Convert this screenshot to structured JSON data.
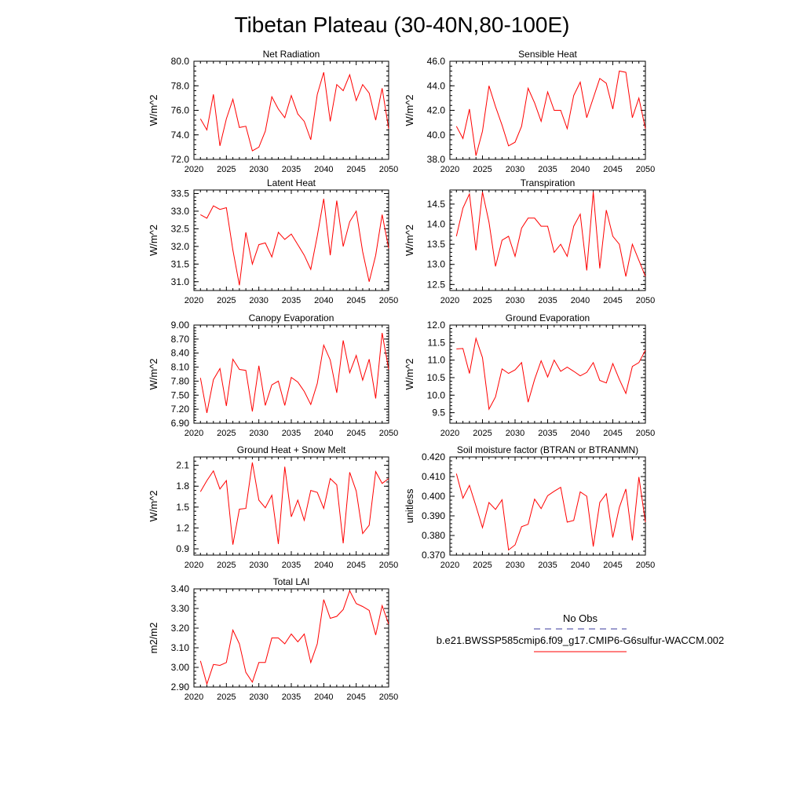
{
  "title": "Tibetan Plateau (30-40N,80-100E)",
  "legend": {
    "obs_label": "No Obs",
    "model_label": "b.e21.BWSSP585cmip6.f09_g17.CMIP6-G6sulfur-WACCM.002",
    "obs_color": "#3a3a9e",
    "model_color": "#ff0000"
  },
  "chart_data": [
    {
      "type": "line",
      "title": "Net Radiation",
      "ylabel": "W/m^2",
      "xlim": [
        2020,
        2050
      ],
      "ylim": [
        72.0,
        80.0
      ],
      "xticks": [
        "2020",
        "2025",
        "2030",
        "2035",
        "2040",
        "2045",
        "2050"
      ],
      "yticks": [
        "72.0",
        "74.0",
        "76.0",
        "78.0",
        "80.0"
      ],
      "series": [
        {
          "color": "#ff0000",
          "x": [
            2021,
            2022,
            2023,
            2024,
            2025,
            2026,
            2027,
            2028,
            2029,
            2030,
            2031,
            2032,
            2033,
            2034,
            2035,
            2036,
            2037,
            2038,
            2039,
            2040,
            2041,
            2042,
            2043,
            2044,
            2045,
            2046,
            2047,
            2048,
            2049,
            2050
          ],
          "y": [
            75.3,
            74.4,
            77.3,
            73.1,
            75.3,
            76.9,
            74.6,
            74.7,
            72.7,
            73.0,
            74.3,
            77.1,
            76.1,
            75.4,
            77.2,
            75.7,
            75.1,
            73.6,
            77.3,
            79.1,
            75.1,
            78.1,
            77.6,
            78.9,
            76.8,
            78.1,
            77.4,
            75.2,
            77.8,
            74.5
          ]
        }
      ]
    },
    {
      "type": "line",
      "title": "Sensible Heat",
      "ylabel": "W/m^2",
      "xlim": [
        2020,
        2050
      ],
      "ylim": [
        38.0,
        46.0
      ],
      "xticks": [
        "2020",
        "2025",
        "2030",
        "2035",
        "2040",
        "2045",
        "2050"
      ],
      "yticks": [
        "38.0",
        "40.0",
        "42.0",
        "44.0",
        "46.0"
      ],
      "series": [
        {
          "color": "#ff0000",
          "x": [
            2021,
            2022,
            2023,
            2024,
            2025,
            2026,
            2027,
            2028,
            2029,
            2030,
            2031,
            2032,
            2033,
            2034,
            2035,
            2036,
            2037,
            2038,
            2039,
            2040,
            2041,
            2042,
            2043,
            2044,
            2045,
            2046,
            2047,
            2048,
            2049,
            2050
          ],
          "y": [
            40.7,
            39.7,
            42.1,
            38.3,
            40.3,
            44.0,
            42.3,
            40.8,
            39.1,
            39.4,
            40.7,
            43.8,
            42.6,
            41.1,
            43.5,
            42.0,
            42.0,
            40.5,
            43.2,
            44.3,
            41.4,
            43.0,
            44.6,
            44.2,
            42.1,
            45.2,
            45.1,
            41.4,
            43.0,
            40.5
          ]
        }
      ]
    },
    {
      "type": "line",
      "title": "Latent Heat",
      "ylabel": "W/m^2",
      "xlim": [
        2020,
        2050
      ],
      "ylim": [
        30.75,
        33.6
      ],
      "xticks": [
        "2020",
        "2025",
        "2030",
        "2035",
        "2040",
        "2045",
        "2050"
      ],
      "yticks": [
        "31.0",
        "31.5",
        "32.0",
        "32.5",
        "33.0",
        "33.5"
      ],
      "series": [
        {
          "color": "#ff0000",
          "x": [
            2021,
            2022,
            2023,
            2024,
            2025,
            2026,
            2027,
            2028,
            2029,
            2030,
            2031,
            2032,
            2033,
            2034,
            2035,
            2036,
            2037,
            2038,
            2039,
            2040,
            2041,
            2042,
            2043,
            2044,
            2045,
            2046,
            2047,
            2048,
            2049,
            2050
          ],
          "y": [
            32.9,
            32.8,
            33.15,
            33.05,
            33.1,
            31.9,
            30.9,
            32.4,
            31.5,
            32.05,
            32.1,
            31.7,
            32.4,
            32.2,
            32.35,
            32.05,
            31.75,
            31.35,
            32.3,
            33.35,
            31.75,
            33.3,
            32.0,
            32.7,
            33.0,
            31.85,
            31.0,
            31.75,
            32.9,
            31.95
          ]
        }
      ]
    },
    {
      "type": "line",
      "title": "Transpiration",
      "ylabel": "W/m^2",
      "xlim": [
        2020,
        2050
      ],
      "ylim": [
        12.35,
        14.85
      ],
      "xticks": [
        "2020",
        "2025",
        "2030",
        "2035",
        "2040",
        "2045",
        "2050"
      ],
      "yticks": [
        "12.5",
        "13.0",
        "13.5",
        "14.0",
        "14.5"
      ],
      "series": [
        {
          "color": "#ff0000",
          "x": [
            2021,
            2022,
            2023,
            2024,
            2025,
            2026,
            2027,
            2028,
            2029,
            2030,
            2031,
            2032,
            2033,
            2034,
            2035,
            2036,
            2037,
            2038,
            2039,
            2040,
            2041,
            2042,
            2043,
            2044,
            2045,
            2046,
            2047,
            2048,
            2049,
            2050
          ],
          "y": [
            13.7,
            14.4,
            14.75,
            13.35,
            14.8,
            14.05,
            12.95,
            13.6,
            13.7,
            13.2,
            13.9,
            14.15,
            14.15,
            13.95,
            13.95,
            13.3,
            13.5,
            13.2,
            13.95,
            14.25,
            12.85,
            14.8,
            12.9,
            14.35,
            13.7,
            13.5,
            12.7,
            13.5,
            13.1,
            12.7
          ]
        }
      ]
    },
    {
      "type": "line",
      "title": "Canopy Evaporation",
      "ylabel": "W/m^2",
      "xlim": [
        2020,
        2050
      ],
      "ylim": [
        6.9,
        9.0
      ],
      "xticks": [
        "2020",
        "2025",
        "2030",
        "2035",
        "2040",
        "2045",
        "2050"
      ],
      "yticks": [
        "6.90",
        "7.20",
        "7.50",
        "7.80",
        "8.10",
        "8.40",
        "8.70",
        "9.00"
      ],
      "series": [
        {
          "color": "#ff0000",
          "x": [
            2021,
            2022,
            2023,
            2024,
            2025,
            2026,
            2027,
            2028,
            2029,
            2030,
            2031,
            2032,
            2033,
            2034,
            2035,
            2036,
            2037,
            2038,
            2039,
            2040,
            2041,
            2042,
            2043,
            2044,
            2045,
            2046,
            2047,
            2048,
            2049,
            2050
          ],
          "y": [
            7.87,
            7.12,
            7.83,
            8.07,
            7.27,
            8.27,
            8.05,
            8.03,
            7.15,
            8.13,
            7.28,
            7.72,
            7.8,
            7.28,
            7.88,
            7.78,
            7.58,
            7.3,
            7.75,
            8.57,
            8.25,
            7.55,
            8.67,
            7.98,
            8.35,
            7.82,
            8.27,
            7.43,
            8.83,
            8.05
          ]
        }
      ]
    },
    {
      "type": "line",
      "title": "Ground Evaporation",
      "ylabel": "W/m^2",
      "xlim": [
        2020,
        2050
      ],
      "ylim": [
        9.2,
        12.0
      ],
      "xticks": [
        "2020",
        "2025",
        "2030",
        "2035",
        "2040",
        "2045",
        "2050"
      ],
      "yticks": [
        "9.5",
        "10.0",
        "10.5",
        "11.0",
        "11.5",
        "12.0"
      ],
      "series": [
        {
          "color": "#ff0000",
          "x": [
            2021,
            2022,
            2023,
            2024,
            2025,
            2026,
            2027,
            2028,
            2029,
            2030,
            2031,
            2032,
            2033,
            2034,
            2035,
            2036,
            2037,
            2038,
            2039,
            2040,
            2041,
            2042,
            2043,
            2044,
            2045,
            2046,
            2047,
            2048,
            2049,
            2050
          ],
          "y": [
            11.32,
            11.33,
            10.62,
            11.62,
            11.07,
            9.6,
            9.95,
            10.75,
            10.62,
            10.72,
            10.93,
            9.8,
            10.45,
            10.98,
            10.52,
            11.0,
            10.68,
            10.8,
            10.68,
            10.55,
            10.65,
            10.93,
            10.42,
            10.35,
            10.9,
            10.45,
            10.05,
            10.82,
            10.93,
            11.28
          ]
        }
      ]
    },
    {
      "type": "line",
      "title": "Ground Heat + Snow Melt",
      "ylabel": "W/m^2",
      "xlim": [
        2020,
        2050
      ],
      "ylim": [
        0.81,
        2.22
      ],
      "xticks": [
        "2020",
        "2025",
        "2030",
        "2035",
        "2040",
        "2045",
        "2050"
      ],
      "yticks": [
        "0.9",
        "1.2",
        "1.5",
        "1.8",
        "2.1"
      ],
      "series": [
        {
          "color": "#ff0000",
          "x": [
            2021,
            2022,
            2023,
            2024,
            2025,
            2026,
            2027,
            2028,
            2029,
            2030,
            2031,
            2032,
            2033,
            2034,
            2035,
            2036,
            2037,
            2038,
            2039,
            2040,
            2041,
            2042,
            2043,
            2044,
            2045,
            2046,
            2047,
            2048,
            2049,
            2050
          ],
          "y": [
            1.72,
            1.88,
            2.02,
            1.76,
            1.88,
            0.96,
            1.47,
            1.48,
            2.14,
            1.6,
            1.49,
            1.67,
            0.97,
            2.08,
            1.36,
            1.6,
            1.31,
            1.74,
            1.71,
            1.48,
            1.91,
            1.82,
            0.98,
            2.0,
            1.73,
            1.12,
            1.24,
            2.01,
            1.84,
            1.91
          ]
        }
      ]
    },
    {
      "type": "line",
      "title": "Soil moisture factor (BTRAN or BTRANMN)",
      "ylabel": "unitless",
      "xlim": [
        2020,
        2050
      ],
      "ylim": [
        0.37,
        0.42
      ],
      "xticks": [
        "2020",
        "2025",
        "2030",
        "2035",
        "2040",
        "2045",
        "2050"
      ],
      "yticks": [
        "0.370",
        "0.380",
        "0.390",
        "0.400",
        "0.410",
        "0.420"
      ],
      "series": [
        {
          "color": "#ff0000",
          "x": [
            2021,
            2022,
            2023,
            2024,
            2025,
            2026,
            2027,
            2028,
            2029,
            2030,
            2031,
            2032,
            2033,
            2034,
            2035,
            2036,
            2037,
            2038,
            2039,
            2040,
            2041,
            2042,
            2043,
            2044,
            2045,
            2046,
            2047,
            2048,
            2049,
            2050
          ],
          "y": [
            0.4115,
            0.399,
            0.4055,
            0.395,
            0.384,
            0.3968,
            0.3933,
            0.3982,
            0.3726,
            0.3752,
            0.3845,
            0.3857,
            0.3985,
            0.3937,
            0.4003,
            0.4025,
            0.4045,
            0.3868,
            0.3877,
            0.4022,
            0.4,
            0.3744,
            0.3968,
            0.4013,
            0.379,
            0.3943,
            0.4037,
            0.3775,
            0.4098,
            0.3868
          ]
        }
      ]
    },
    {
      "type": "line",
      "title": "Total LAI",
      "ylabel": "m2/m2",
      "xlim": [
        2020,
        2050
      ],
      "ylim": [
        2.9,
        3.4
      ],
      "xticks": [
        "2020",
        "2025",
        "2030",
        "2035",
        "2040",
        "2045",
        "2050"
      ],
      "yticks": [
        "2.90",
        "3.00",
        "3.10",
        "3.20",
        "3.30",
        "3.40"
      ],
      "series": [
        {
          "color": "#ff0000",
          "x": [
            2021,
            2022,
            2023,
            2024,
            2025,
            2026,
            2027,
            2028,
            2029,
            2030,
            2031,
            2032,
            2033,
            2034,
            2035,
            2036,
            2037,
            2038,
            2039,
            2040,
            2041,
            2042,
            2043,
            2044,
            2045,
            2046,
            2047,
            2048,
            2049,
            2050
          ],
          "y": [
            3.033,
            2.915,
            3.015,
            3.01,
            3.025,
            3.19,
            3.12,
            2.975,
            2.925,
            3.025,
            3.025,
            3.15,
            3.15,
            3.12,
            3.17,
            3.13,
            3.17,
            3.025,
            3.12,
            3.345,
            3.25,
            3.26,
            3.295,
            3.39,
            3.325,
            3.31,
            3.29,
            3.165,
            3.315,
            3.22
          ]
        }
      ]
    }
  ]
}
